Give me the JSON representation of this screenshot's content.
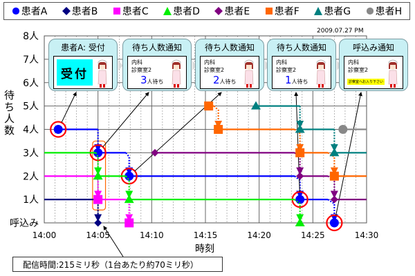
{
  "legend": [
    {
      "name": "患者A",
      "color": "#0000ff",
      "marker": "circle"
    },
    {
      "name": "患者B",
      "color": "#000080",
      "marker": "diamond"
    },
    {
      "name": "患者C",
      "color": "#ff00ff",
      "marker": "square"
    },
    {
      "name": "患者D",
      "color": "#00ee00",
      "marker": "triangle"
    },
    {
      "name": "患者E",
      "color": "#800080",
      "marker": "diamond"
    },
    {
      "name": "患者F",
      "color": "#ff6600",
      "marker": "square"
    },
    {
      "name": "患者G",
      "color": "#008080",
      "marker": "triangle"
    },
    {
      "name": "患者H",
      "color": "#888888",
      "marker": "circle"
    }
  ],
  "date": "2009.07.27 PM",
  "callouts": [
    {
      "title": "患者A: 受付",
      "reception": "受付"
    },
    {
      "title": "待ち人数通知",
      "dept": "内科",
      "room": "診察室2",
      "count": "3",
      "unit": "人待ち"
    },
    {
      "title": "待ち人数通知",
      "dept": "内科",
      "room": "診察室2",
      "count": "2",
      "unit": "人待ち"
    },
    {
      "title": "待ち人数通知",
      "dept": "内科",
      "room": "診察室2",
      "count": "1",
      "unit": "人待ち"
    },
    {
      "title": "呼込み通知",
      "dept": "内科",
      "room": "診察室2",
      "message": "診察室へお入り下さい"
    }
  ],
  "note": "配信時間:215ミリ秒（1台あたり約70ミリ秒）",
  "highlight_color": "#ff0000",
  "chart_data": {
    "type": "line",
    "step": true,
    "ylabel": "待ち人数",
    "xlabel": "時刻",
    "x_ticks": [
      "14:00",
      "14:05",
      "14:10",
      "14:15",
      "14:20",
      "14:25",
      "14:30"
    ],
    "x_unit": "minutes after 14:00",
    "xlim": [
      0,
      30
    ],
    "y_ticks": [
      "呼込み",
      "1人",
      "2人",
      "3人",
      "4人",
      "5人",
      "6人",
      "7人",
      "8人"
    ],
    "ylim": [
      0,
      8
    ],
    "grid": true,
    "legend": "top",
    "series": [
      {
        "name": "患者A",
        "markers": [
          [
            1.3,
            4
          ],
          [
            5,
            3
          ],
          [
            7.9,
            2
          ],
          [
            23.8,
            1
          ],
          [
            27,
            0
          ]
        ],
        "solid": [
          [
            1.3,
            5,
            4
          ],
          [
            5,
            7.6,
            3
          ],
          [
            7.9,
            23.3,
            2
          ],
          [
            23.8,
            26.4,
            1
          ]
        ],
        "drops": [
          [
            5,
            4,
            5,
            3
          ],
          [
            7.6,
            3,
            7.9,
            2
          ],
          [
            23.3,
            2,
            23.8,
            1
          ],
          [
            26.4,
            1,
            27,
            0
          ]
        ],
        "highlight": true
      },
      {
        "name": "患者B",
        "markers": [
          [
            5,
            0
          ]
        ],
        "solid": [
          [
            0,
            4.8,
            1
          ]
        ],
        "drops": [
          [
            4.8,
            1,
            5,
            0
          ]
        ]
      },
      {
        "name": "患者C",
        "markers": [
          [
            5,
            1
          ],
          [
            7.9,
            0
          ]
        ],
        "solid": [
          [
            0,
            4.8,
            2
          ],
          [
            5,
            7.6,
            1
          ]
        ],
        "drops": [
          [
            4.8,
            2,
            5,
            1
          ],
          [
            7.6,
            1,
            7.9,
            0
          ]
        ]
      },
      {
        "name": "患者D",
        "markers": [
          [
            5,
            2
          ],
          [
            7.9,
            1
          ],
          [
            23.8,
            0
          ]
        ],
        "solid": [
          [
            0,
            4.8,
            3
          ],
          [
            5,
            7.6,
            2
          ],
          [
            7.9,
            23.3,
            1
          ]
        ],
        "drops": [
          [
            4.8,
            3,
            5,
            2
          ],
          [
            7.6,
            2,
            7.9,
            1
          ],
          [
            23.3,
            1,
            23.8,
            0
          ]
        ]
      },
      {
        "name": "患者E",
        "markers": [
          [
            10.3,
            3
          ],
          [
            23.8,
            2
          ],
          [
            27,
            1
          ]
        ],
        "solid": [
          [
            10.3,
            23.3,
            3
          ],
          [
            23.8,
            26.4,
            2
          ],
          [
            27,
            30,
            1
          ]
        ],
        "drops": [
          [
            23.3,
            3,
            23.8,
            2
          ],
          [
            26.4,
            2,
            27,
            1
          ]
        ]
      },
      {
        "name": "患者F",
        "markers": [
          [
            15.3,
            5
          ],
          [
            16.2,
            4
          ],
          [
            23.8,
            3
          ],
          [
            27,
            2
          ]
        ],
        "solid": [
          [
            15.3,
            15.8,
            5
          ],
          [
            16.2,
            23.3,
            4
          ],
          [
            23.8,
            26.4,
            3
          ],
          [
            27,
            30,
            2
          ]
        ],
        "drops": [
          [
            15.8,
            5,
            16.2,
            4
          ],
          [
            23.3,
            4,
            23.8,
            3
          ],
          [
            26.4,
            3,
            27,
            2
          ]
        ]
      },
      {
        "name": "患者G",
        "markers": [
          [
            19.7,
            5
          ],
          [
            23.8,
            4
          ],
          [
            27,
            3
          ]
        ],
        "solid": [
          [
            19.7,
            23.8,
            5
          ],
          [
            23.8,
            27,
            4
          ],
          [
            27,
            30,
            3
          ]
        ],
        "drops": [
          [
            23.8,
            5,
            23.8,
            4
          ],
          [
            27,
            4,
            27,
            3
          ]
        ]
      },
      {
        "name": "患者H",
        "markers": [
          [
            27.8,
            4
          ]
        ],
        "solid": [
          [
            27.8,
            30,
            4
          ]
        ],
        "drops": []
      }
    ]
  }
}
